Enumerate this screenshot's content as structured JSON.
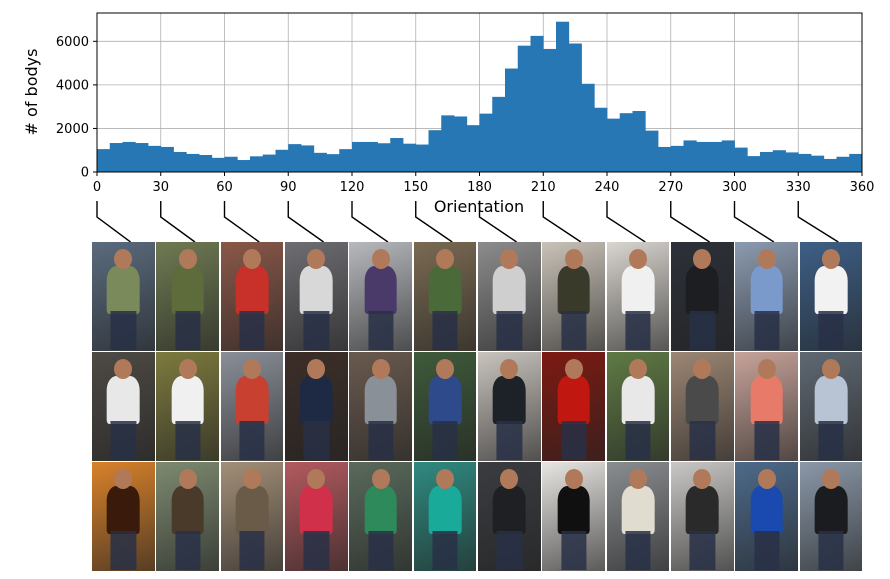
{
  "chart_data": {
    "type": "bar",
    "xlabel": "Orientation",
    "ylabel": "# of bodys",
    "xlim": [
      0,
      360
    ],
    "ylim": [
      0,
      7300
    ],
    "bin_width": 6,
    "x_ticks": [
      0,
      30,
      60,
      90,
      120,
      150,
      180,
      210,
      240,
      270,
      300,
      330,
      360
    ],
    "y_ticks": [
      0,
      2000,
      4000,
      6000
    ],
    "grid": true,
    "bar_color": "#2777b4",
    "x": [
      3,
      9,
      15,
      21,
      27,
      33,
      39,
      45,
      51,
      57,
      63,
      69,
      75,
      81,
      87,
      93,
      99,
      105,
      111,
      117,
      123,
      129,
      135,
      141,
      147,
      153,
      159,
      165,
      171,
      177,
      183,
      189,
      195,
      201,
      207,
      213,
      219,
      225,
      231,
      237,
      243,
      249,
      255,
      261,
      267,
      273,
      279,
      285,
      291,
      297,
      303,
      309,
      315,
      321,
      327,
      333,
      339,
      345,
      351,
      357
    ],
    "values": [
      1050,
      1330,
      1380,
      1330,
      1200,
      1150,
      920,
      830,
      780,
      650,
      700,
      550,
      720,
      800,
      1020,
      1280,
      1220,
      880,
      820,
      1050,
      1380,
      1380,
      1320,
      1560,
      1300,
      1260,
      1920,
      2600,
      2550,
      2150,
      2680,
      3450,
      4750,
      5800,
      6250,
      5650,
      6900,
      5900,
      4050,
      2950,
      2450,
      2700,
      2800,
      1900,
      1150,
      1200,
      1450,
      1380,
      1380,
      1450,
      1120,
      730,
      920,
      1000,
      900,
      830,
      750,
      600,
      700,
      830
    ]
  },
  "thumbnails": {
    "angles": [
      0,
      30,
      60,
      90,
      120,
      150,
      180,
      210,
      240,
      270,
      300,
      330
    ],
    "rows": 3,
    "columns": 12
  }
}
